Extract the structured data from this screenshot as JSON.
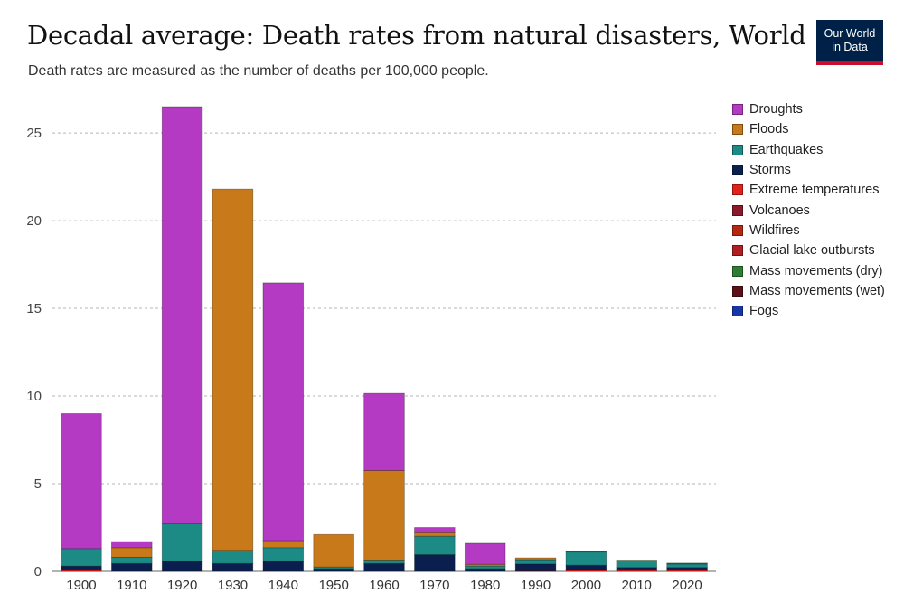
{
  "title": "Decadal average: Death rates from natural disasters, World",
  "subtitle": "Death rates are measured as the number of deaths per 100,000 people.",
  "logo": {
    "line1": "Our World",
    "line2": "in Data"
  },
  "chart_data": {
    "type": "bar",
    "stacked": true,
    "grid": true,
    "legend_position": "right",
    "ylim": [
      0,
      26.5
    ],
    "yticks": [
      0,
      5,
      10,
      15,
      20,
      25
    ],
    "categories": [
      "1900",
      "1910",
      "1920",
      "1930",
      "1940",
      "1950",
      "1960",
      "1970",
      "1980",
      "1990",
      "2000",
      "2010",
      "2020"
    ],
    "series": [
      {
        "name": "Extreme temperatures",
        "color": "#d81b1b",
        "values": [
          0.12,
          0,
          0,
          0,
          0,
          0,
          0,
          0,
          0,
          0.02,
          0.1,
          0.12,
          0.12
        ]
      },
      {
        "name": "Storms",
        "color": "#0b1f4f",
        "values": [
          0.18,
          0.45,
          0.6,
          0.45,
          0.6,
          0.15,
          0.45,
          0.95,
          0.15,
          0.4,
          0.25,
          0.1,
          0.1
        ]
      },
      {
        "name": "Earthquakes",
        "color": "#1c8b85",
        "values": [
          1.0,
          0.35,
          2.1,
          0.75,
          0.75,
          0.1,
          0.2,
          1.05,
          0.15,
          0.25,
          0.75,
          0.4,
          0.2
        ]
      },
      {
        "name": "Floods",
        "color": "#c8791a",
        "values": [
          0,
          0.55,
          0,
          20.6,
          0.4,
          1.85,
          5.1,
          0.2,
          0.1,
          0.1,
          0,
          0,
          0
        ]
      },
      {
        "name": "Droughts",
        "color": "#b53ac3",
        "values": [
          7.7,
          0.35,
          23.8,
          0,
          14.7,
          0,
          4.4,
          0.3,
          1.2,
          0,
          0,
          0,
          0
        ]
      },
      {
        "name": "Mass movements (dry)",
        "color": "#2e7d32",
        "values": [
          0,
          0,
          0,
          0,
          0,
          0,
          0,
          0,
          0,
          0,
          0.05,
          0.02,
          0.05
        ]
      }
    ],
    "legend": [
      {
        "name": "Droughts",
        "color": "#b53ac3"
      },
      {
        "name": "Floods",
        "color": "#c8791a"
      },
      {
        "name": "Earthquakes",
        "color": "#1c8b85"
      },
      {
        "name": "Storms",
        "color": "#0b1f4f"
      },
      {
        "name": "Extreme temperatures",
        "color": "#e32119"
      },
      {
        "name": "Volcanoes",
        "color": "#8a1a2a"
      },
      {
        "name": "Wildfires",
        "color": "#b5280f"
      },
      {
        "name": "Glacial lake outbursts",
        "color": "#b01e24"
      },
      {
        "name": "Mass movements (dry)",
        "color": "#2e7d32"
      },
      {
        "name": "Mass movements (wet)",
        "color": "#5a1016"
      },
      {
        "name": "Fogs",
        "color": "#1636a8"
      }
    ]
  }
}
